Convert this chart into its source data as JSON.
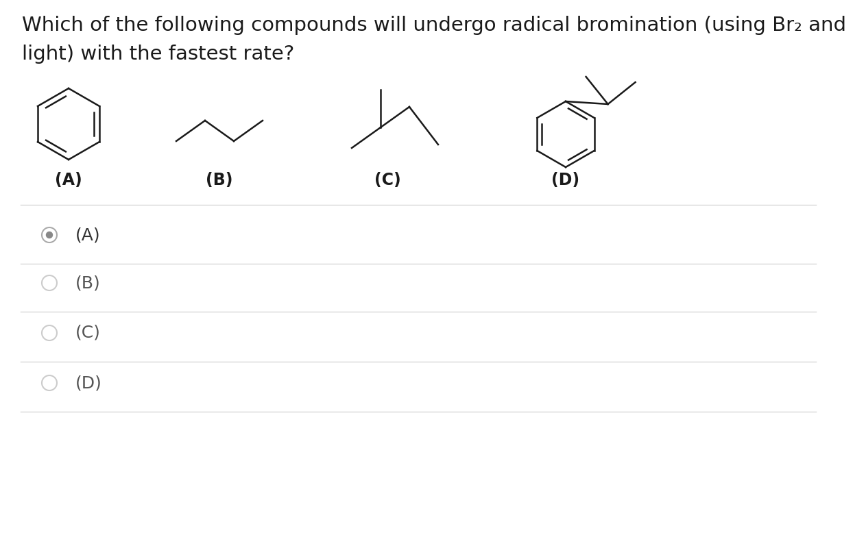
{
  "background_color": "#ffffff",
  "question_line1": "Which of the following compounds will undergo radical bromination (using Br₂ and",
  "question_line2": "light) with the fastest rate?",
  "question_fontsize": 21,
  "question_color": "#1a1a1a",
  "options": [
    "(A)",
    "(B)",
    "(C)",
    "(D)"
  ],
  "selected_option": 0,
  "option_fontsize": 18,
  "option_color": "#555555",
  "option_selected_color": "#333333",
  "divider_color": "#d8d8d8",
  "radio_selected_outer": "#aaaaaa",
  "radio_selected_inner": "#888888",
  "radio_unselected_color": "#cccccc",
  "mol_label_fontsize": 17,
  "mol_label_color": "#1a1a1a",
  "mol_color": "#1a1a1a"
}
